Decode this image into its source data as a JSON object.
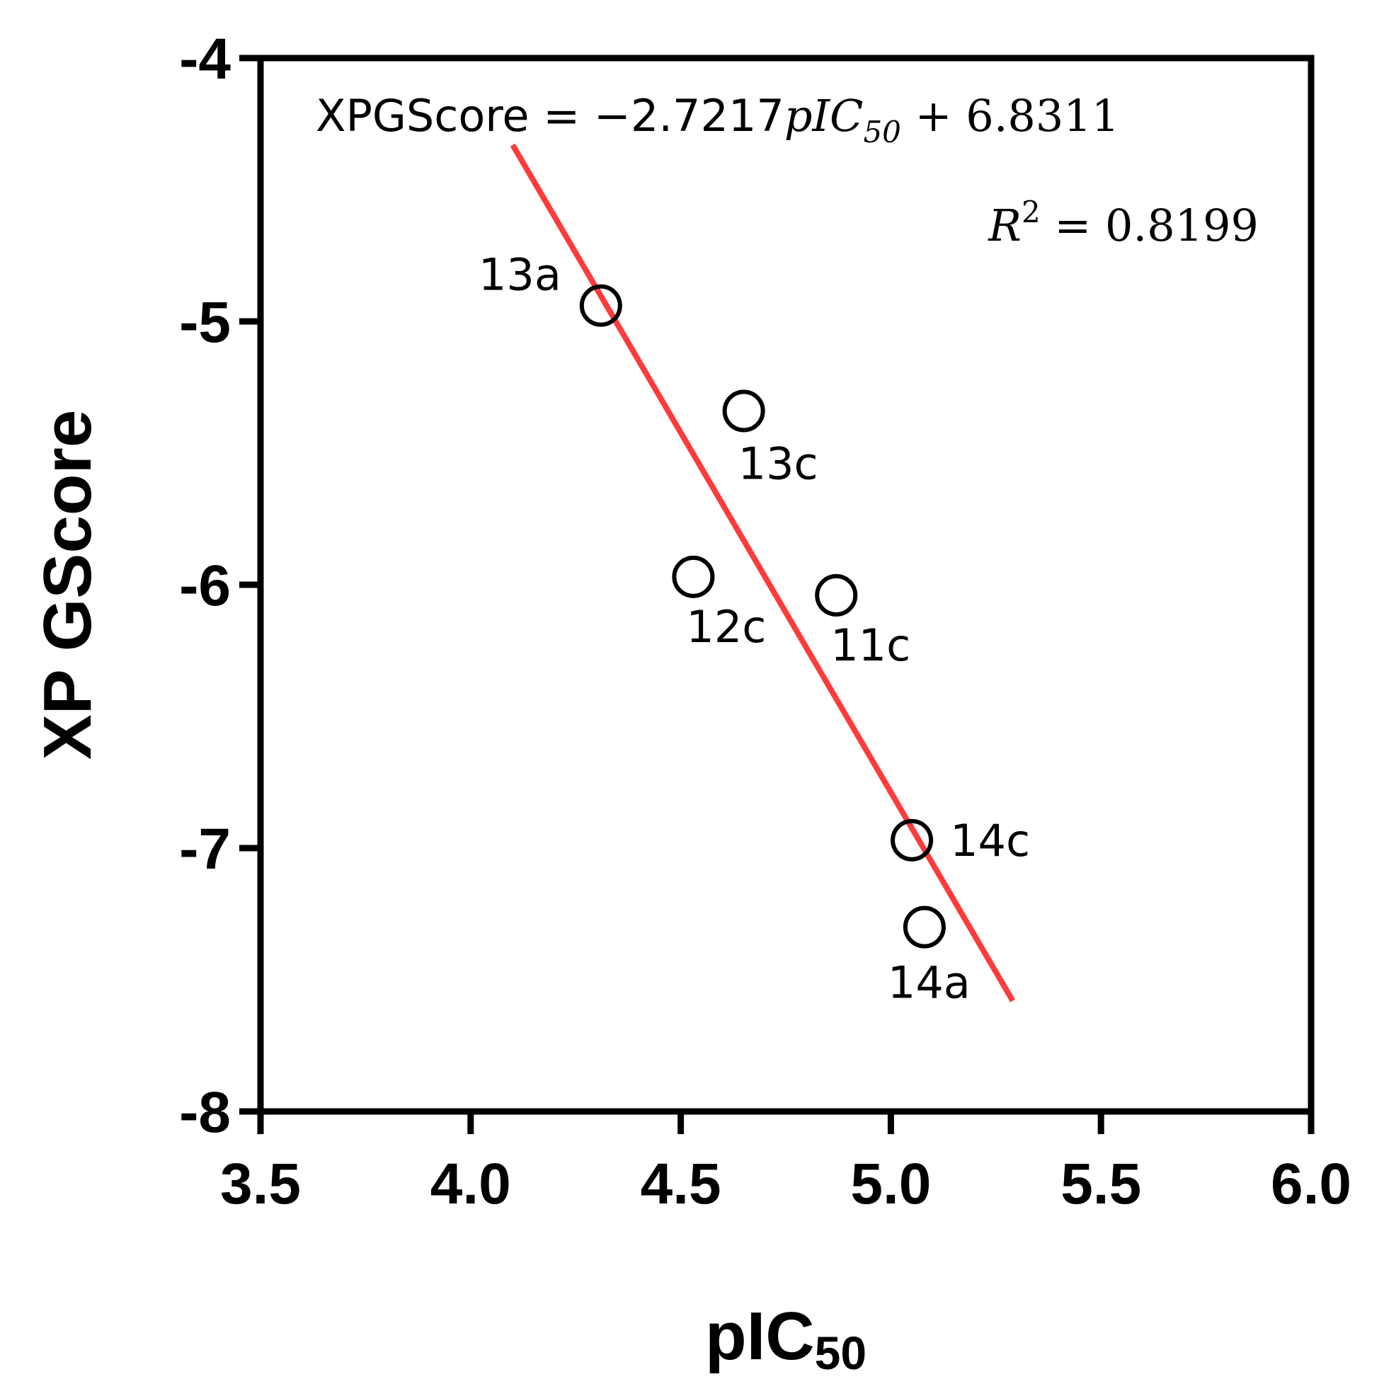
{
  "chart_data": {
    "type": "scatter",
    "xlabel": {
      "main": "pIC",
      "sub": "50"
    },
    "ylabel": "XP GScore",
    "xlim": [
      3.5,
      6.0
    ],
    "ylim": [
      -8,
      -4
    ],
    "x_ticks": [
      "3.5",
      "4.0",
      "4.5",
      "5.0",
      "5.5",
      "6.0"
    ],
    "y_ticks": [
      "-4",
      "-5",
      "-6",
      "-7",
      "-8"
    ],
    "grid": false,
    "points": [
      {
        "label": "13a",
        "x": 4.31,
        "y": -4.94
      },
      {
        "label": "13c",
        "x": 4.65,
        "y": -5.34
      },
      {
        "label": "12c",
        "x": 4.53,
        "y": -5.97
      },
      {
        "label": "11c",
        "x": 4.87,
        "y": -6.04
      },
      {
        "label": "14c",
        "x": 5.05,
        "y": -6.97
      },
      {
        "label": "14a",
        "x": 5.08,
        "y": -7.3
      }
    ],
    "fit_line": {
      "x": [
        4.1,
        5.29
      ],
      "y": [
        -4.33,
        -7.58
      ],
      "color": "#ff3b3b"
    },
    "equation": {
      "lhs": "XPGScore = −2.7217",
      "var": "pIC",
      "var_sub": "50",
      "rhs": " + 6.8311"
    },
    "r_squared": {
      "symbol": "R",
      "power": "2",
      "value": " = 0.8199"
    },
    "marker_color": "#000000"
  }
}
